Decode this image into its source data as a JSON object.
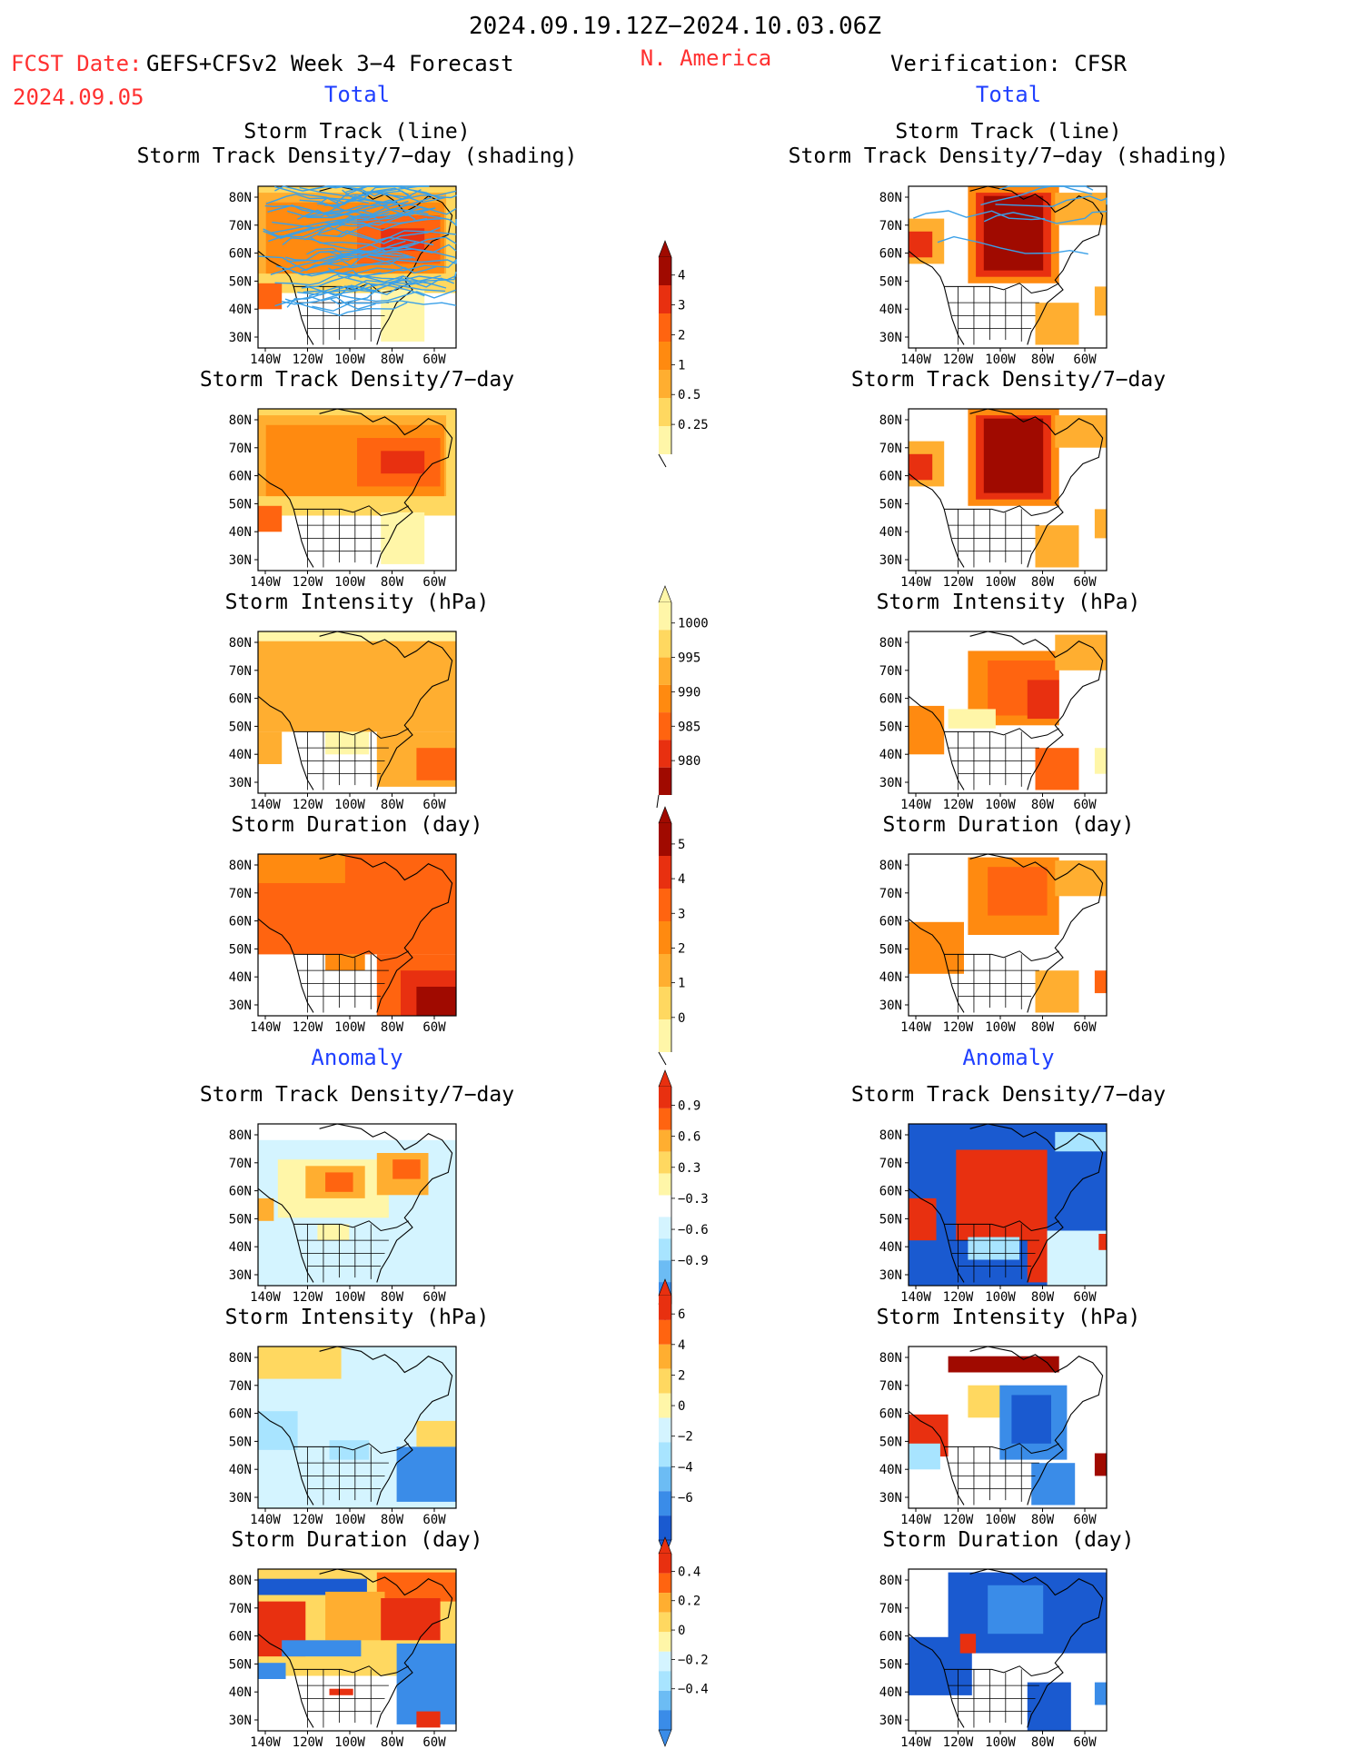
{
  "header": {
    "period": "2024.09.19.12Z−2024.10.03.06Z",
    "fcst_date_label": "FCST Date:",
    "fcst_date_value": "2024.09.05",
    "model_title": "GEFS+CFSv2 Week 3−4 Forecast",
    "region": "N. America",
    "verification": "Verification: CFSR"
  },
  "sections": {
    "total": "Total",
    "anomaly": "Anomaly"
  },
  "panel_titles": {
    "track_line": "Storm Track (line)",
    "track_shading": "Storm Track Density/7−day (shading)",
    "density": "Storm Track Density/7−day",
    "intensity": "Storm Intensity (hPa)",
    "duration": "Storm Duration (day)"
  },
  "axes": {
    "lon_ticks": [
      "140W",
      "120W",
      "100W",
      "80W",
      "60W"
    ],
    "lat_ticks": [
      "80N",
      "70N",
      "60N",
      "50N",
      "40N",
      "30N"
    ]
  },
  "colors": {
    "header_red": "#ff3030",
    "section_blue": "#2040ff",
    "track_line": "#3aa0e8",
    "pale_yellow": "#fff6a8",
    "yellow": "#ffd860",
    "light_orange": "#ffae30",
    "orange": "#ff8a10",
    "dark_orange": "#ff6410",
    "red": "#e83010",
    "dark_red": "#a00a00",
    "lightest_blue": "#d4f4ff",
    "light_blue": "#a8e4ff",
    "mid_blue": "#6cbcf4",
    "blue": "#3a8ce8",
    "dark_blue": "#1a5ad0"
  },
  "colorbars": [
    {
      "id": "density-total",
      "labels": [
        "4",
        "3",
        "2",
        "1",
        "0.5",
        "0.25"
      ]
    },
    {
      "id": "intensity-total",
      "labels": [
        "1000",
        "995",
        "990",
        "985",
        "980"
      ]
    },
    {
      "id": "duration-total",
      "labels": [
        "5",
        "4",
        "3",
        "2",
        "1",
        "0"
      ]
    },
    {
      "id": "density-anomaly",
      "labels": [
        "0.9",
        "0.6",
        "0.3",
        "−0.3",
        "−0.6",
        "−0.9"
      ]
    },
    {
      "id": "intensity-anomaly",
      "labels": [
        "6",
        "4",
        "2",
        "0",
        "−2",
        "−4",
        "−6"
      ]
    },
    {
      "id": "duration-anomaly",
      "labels": [
        "0.4",
        "0.2",
        "0",
        "−0.2",
        "−0.4"
      ]
    }
  ]
}
